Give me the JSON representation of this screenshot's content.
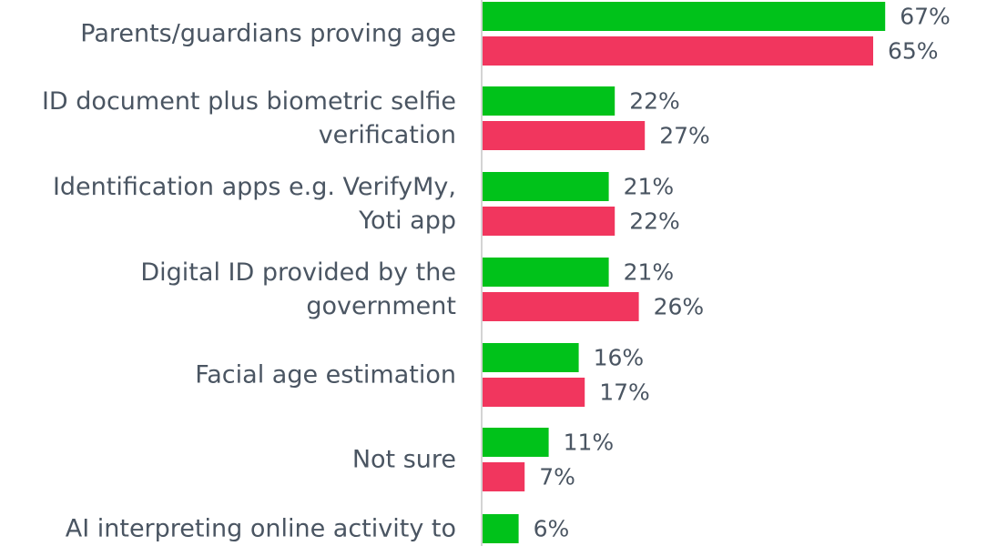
{
  "chart_data": {
    "type": "bar",
    "orientation": "horizontal",
    "categories": [
      [
        "Parents/guardians proving age"
      ],
      [
        "ID document plus biometric selfie",
        "verification"
      ],
      [
        "Identification apps e.g. VerifyMy,",
        "Yoti app"
      ],
      [
        "Digital ID provided by the",
        "government"
      ],
      [
        "Facial age estimation"
      ],
      [
        "Not sure"
      ],
      [
        "AI interpreting online activity to"
      ]
    ],
    "series": [
      {
        "color": "#00c21a",
        "values": [
          67,
          22,
          21,
          21,
          16,
          11,
          6
        ],
        "labels": [
          "67%",
          "22%",
          "21%",
          "21%",
          "16%",
          "11%",
          "6%"
        ]
      },
      {
        "color": "#f1365e",
        "values": [
          65,
          27,
          22,
          26,
          17,
          7,
          null
        ],
        "labels": [
          "65%",
          "27%",
          "22%",
          "26%",
          "17%",
          "7%",
          null
        ]
      }
    ],
    "xlim": [
      0,
      100
    ],
    "grid": false,
    "legend": "none",
    "axis_color": "#d4d4d4"
  }
}
